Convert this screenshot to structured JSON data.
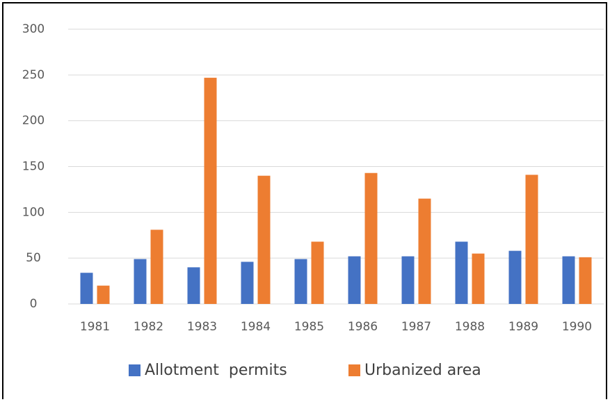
{
  "chart_data": {
    "type": "bar",
    "categories": [
      "1981",
      "1982",
      "1983",
      "1984",
      "1985",
      "1986",
      "1987",
      "1988",
      "1989",
      "1990"
    ],
    "series": [
      {
        "name": "Allotment  permits",
        "color": "#4472c4",
        "values": [
          34,
          49,
          40,
          46,
          49,
          52,
          52,
          68,
          58,
          52
        ]
      },
      {
        "name": "Urbanized area",
        "color": "#ed7d31",
        "values": [
          20,
          81,
          247,
          140,
          68,
          143,
          115,
          55,
          141,
          51
        ]
      }
    ],
    "ylim": [
      0,
      300
    ],
    "yticks": [
      0,
      50,
      100,
      150,
      200,
      250,
      300
    ],
    "grid": true,
    "legend": "bottom"
  }
}
